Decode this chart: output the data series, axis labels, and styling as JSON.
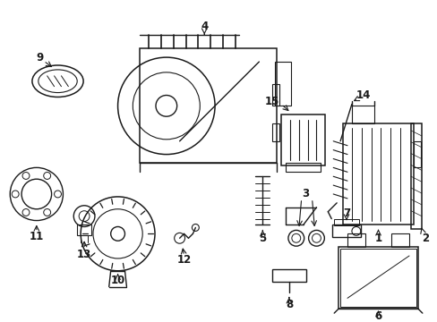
{
  "background_color": "#ffffff",
  "line_color": "#1a1a1a",
  "line_width": 1.0,
  "figsize": [
    4.89,
    3.6
  ],
  "dpi": 100
}
